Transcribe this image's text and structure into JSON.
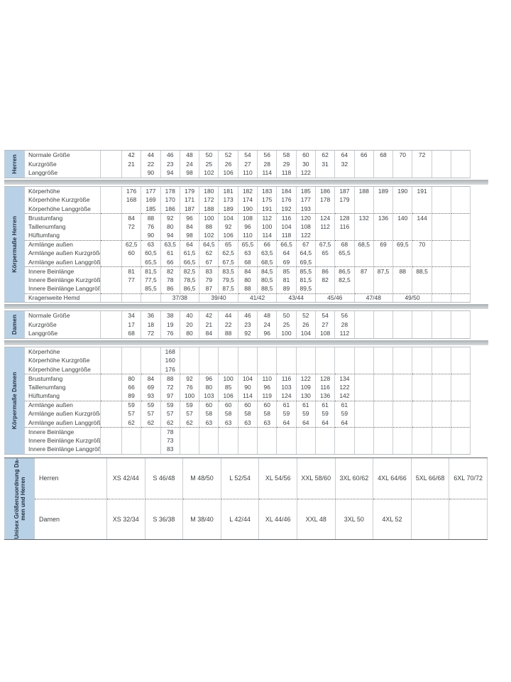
{
  "colors": {
    "strip_background": "#b9d1e6",
    "strip_text": "#223344",
    "grid_line": "#c9cdd1",
    "group_divider": "#6f6f6f",
    "section_border": "#b7bbbe",
    "separator_band_top": "#aab0b4",
    "separator_band_bottom": "#d9dcde",
    "text": "#3d3f41"
  },
  "sections": [
    {
      "id": "herren-groessen",
      "strip": "Herren",
      "kind": "main",
      "rows": [
        {
          "label": "Normale Größe",
          "values": [
            "42",
            "44",
            "46",
            "48",
            "50",
            "52",
            "54",
            "56",
            "58",
            "60",
            "62",
            "64",
            "66",
            "68",
            "70",
            "72",
            "",
            ""
          ]
        },
        {
          "label": "Kurzgröße",
          "values": [
            "21",
            "22",
            "23",
            "24",
            "25",
            "26",
            "27",
            "28",
            "29",
            "30",
            "31",
            "32",
            "",
            "",
            "",
            "",
            "",
            ""
          ]
        },
        {
          "label": "Langgröße",
          "values": [
            "",
            "90",
            "94",
            "98",
            "102",
            "106",
            "110",
            "114",
            "118",
            "122",
            "",
            "",
            "",
            "",
            "",
            "",
            "",
            ""
          ]
        }
      ]
    },
    {
      "id": "koerpermasse-herren",
      "strip": "Körpermaße Herren",
      "kind": "main",
      "rows": [
        {
          "label": "Körperhöhe",
          "values": [
            "176",
            "177",
            "178",
            "179",
            "180",
            "181",
            "182",
            "183",
            "184",
            "185",
            "186",
            "187",
            "188",
            "189",
            "190",
            "191",
            "",
            ""
          ]
        },
        {
          "label": "Körperhöhe Kurzgröße",
          "values": [
            "168",
            "169",
            "170",
            "171",
            "172",
            "173",
            "174",
            "175",
            "176",
            "177",
            "178",
            "179",
            "",
            "",
            "",
            "",
            "",
            ""
          ]
        },
        {
          "label": "Körperhöhe Langgröße",
          "values": [
            "",
            "185",
            "186",
            "187",
            "188",
            "189",
            "190",
            "191",
            "192",
            "193",
            "",
            "",
            "",
            "",
            "",
            "",
            "",
            ""
          ]
        },
        {
          "label": "Brustumfang",
          "group_start": true,
          "values": [
            "84",
            "88",
            "92",
            "96",
            "100",
            "104",
            "108",
            "112",
            "116",
            "120",
            "124",
            "128",
            "132",
            "136",
            "140",
            "144",
            "",
            ""
          ]
        },
        {
          "label": "Taillenumfang",
          "values": [
            "72",
            "76",
            "80",
            "84",
            "88",
            "92",
            "96",
            "100",
            "104",
            "108",
            "112",
            "116",
            "",
            "",
            "",
            "",
            "",
            ""
          ]
        },
        {
          "label": "Hüftumfang",
          "values": [
            "",
            "90",
            "94",
            "98",
            "102",
            "106",
            "110",
            "114",
            "118",
            "122",
            "",
            "",
            "",
            "",
            "",
            "",
            "",
            ""
          ]
        },
        {
          "label": "Armlänge außen",
          "group_start": true,
          "values": [
            "62,5",
            "63",
            "63,5",
            "64",
            "64,5",
            "65",
            "65,5",
            "66",
            "66,5",
            "67",
            "67,5",
            "68",
            "68,5",
            "69",
            "69,5",
            "70",
            "",
            ""
          ]
        },
        {
          "label": "Armlänge außen Kurzgröße",
          "values": [
            "60",
            "60,5",
            "61",
            "61,5",
            "62",
            "62,5",
            "63",
            "63,5",
            "64",
            "64,5",
            "65",
            "65,5",
            "",
            "",
            "",
            "",
            "",
            ""
          ]
        },
        {
          "label": "Armlänge außen Langgröße",
          "values": [
            "",
            "65,5",
            "66",
            "66,5",
            "67",
            "67,5",
            "68",
            "68,5",
            "69",
            "69,5",
            "",
            "",
            "",
            "",
            "",
            "",
            "",
            ""
          ]
        },
        {
          "label": "Innere Beinlänge",
          "group_start": true,
          "values": [
            "81",
            "81,5",
            "82",
            "82,5",
            "83",
            "83,5",
            "84",
            "84,5",
            "85",
            "85,5",
            "86",
            "86,5",
            "87",
            "87,5",
            "88",
            "88,5",
            "",
            ""
          ]
        },
        {
          "label": "Innere Beinlänge Kurzgröße",
          "values": [
            "77",
            "77,5",
            "78",
            "78,5",
            "79",
            "79,5",
            "80",
            "80,5",
            "81",
            "81,5",
            "82",
            "82,5",
            "",
            "",
            "",
            "",
            "",
            ""
          ]
        },
        {
          "label": "Innere Beinlänge Langgröße",
          "values": [
            "",
            "85,5",
            "86",
            "86,5",
            "87",
            "87,5",
            "88",
            "88,5",
            "89",
            "89,5",
            "",
            "",
            "",
            "",
            "",
            "",
            "",
            ""
          ]
        },
        {
          "label": "Kragenweite Hemd",
          "group_start": true,
          "type": "pair",
          "values": [
            "",
            "37/38",
            "39/40",
            "41/42",
            "43/44",
            "45/46",
            "47/48",
            "49/50",
            ""
          ]
        }
      ]
    },
    {
      "id": "damen-groessen",
      "strip": "Damen",
      "kind": "main",
      "rows": [
        {
          "label": "Normale Größe",
          "values": [
            "34",
            "36",
            "38",
            "40",
            "42",
            "44",
            "46",
            "48",
            "50",
            "52",
            "54",
            "56",
            "",
            "",
            "",
            "",
            "",
            ""
          ]
        },
        {
          "label": "Kurzgröße",
          "values": [
            "17",
            "18",
            "19",
            "20",
            "21",
            "22",
            "23",
            "24",
            "25",
            "26",
            "27",
            "28",
            "",
            "",
            "",
            "",
            "",
            ""
          ]
        },
        {
          "label": "Langgröße",
          "values": [
            "68",
            "72",
            "76",
            "80",
            "84",
            "88",
            "92",
            "96",
            "100",
            "104",
            "108",
            "112",
            "",
            "",
            "",
            "",
            "",
            ""
          ]
        }
      ]
    },
    {
      "id": "koerpermasse-damen",
      "strip": "Körpermaße Damen",
      "kind": "main",
      "rows": [
        {
          "label": "Körperhöhe",
          "values": [
            "",
            "",
            "168",
            "",
            "",
            "",
            "",
            "",
            "",
            "",
            "",
            "",
            "",
            "",
            "",
            "",
            "",
            ""
          ]
        },
        {
          "label": "Körperhöhe Kurzgröße",
          "values": [
            "",
            "",
            "160",
            "",
            "",
            "",
            "",
            "",
            "",
            "",
            "",
            "",
            "",
            "",
            "",
            "",
            "",
            ""
          ]
        },
        {
          "label": "Körperhöhe Langgröße",
          "values": [
            "",
            "",
            "176",
            "",
            "",
            "",
            "",
            "",
            "",
            "",
            "",
            "",
            "",
            "",
            "",
            "",
            "",
            ""
          ]
        },
        {
          "label": "Brustumfang",
          "group_start": true,
          "values": [
            "80",
            "84",
            "88",
            "92",
            "96",
            "100",
            "104",
            "110",
            "116",
            "122",
            "128",
            "134",
            "",
            "",
            "",
            "",
            "",
            ""
          ]
        },
        {
          "label": "Taillenumfang",
          "values": [
            "66",
            "69",
            "72",
            "76",
            "80",
            "85",
            "90",
            "96",
            "103",
            "109",
            "116",
            "122",
            "",
            "",
            "",
            "",
            "",
            ""
          ]
        },
        {
          "label": "Hüftumfang",
          "values": [
            "89",
            "93",
            "97",
            "100",
            "103",
            "106",
            "114",
            "119",
            "124",
            "130",
            "136",
            "142",
            "",
            "",
            "",
            "",
            "",
            ""
          ]
        },
        {
          "label": "Armlänge außen",
          "group_start": true,
          "values": [
            "59",
            "59",
            "59",
            "59",
            "60",
            "60",
            "60",
            "60",
            "61",
            "61",
            "61",
            "61",
            "",
            "",
            "",
            "",
            "",
            ""
          ]
        },
        {
          "label": "Armlänge außen Kurzgröße",
          "values": [
            "57",
            "57",
            "57",
            "57",
            "58",
            "58",
            "58",
            "58",
            "59",
            "59",
            "59",
            "59",
            "",
            "",
            "",
            "",
            "",
            ""
          ]
        },
        {
          "label": "Armlänge außen Langgröße",
          "values": [
            "62",
            "62",
            "62",
            "62",
            "63",
            "63",
            "63",
            "63",
            "64",
            "64",
            "64",
            "64",
            "",
            "",
            "",
            "",
            "",
            ""
          ]
        },
        {
          "label": "Innere Beinlänge",
          "group_start": true,
          "values": [
            "",
            "",
            "78",
            "",
            "",
            "",
            "",
            "",
            "",
            "",
            "",
            "",
            "",
            "",
            "",
            "",
            "",
            ""
          ]
        },
        {
          "label": "Innere Beinlänge Kurzgröße",
          "values": [
            "",
            "",
            "73",
            "",
            "",
            "",
            "",
            "",
            "",
            "",
            "",
            "",
            "",
            "",
            "",
            "",
            "",
            ""
          ]
        },
        {
          "label": "Innere Beinlänge Langgröße",
          "values": [
            "",
            "",
            "83",
            "",
            "",
            "",
            "",
            "",
            "",
            "",
            "",
            "",
            "",
            "",
            "",
            "",
            "",
            ""
          ]
        }
      ]
    },
    {
      "id": "unisex-groessenzuordnung",
      "strip": "Unisex Größenzuordnung Da-\nmen und Herren",
      "kind": "unisex",
      "rows": [
        {
          "label": "Herren",
          "values": [
            "XS 42/44",
            "S 46/48",
            "M 48/50",
            "L 52/54",
            "XL 54/56",
            "XXL 58/60",
            "3XL 60/62",
            "4XL 64/66",
            "5XL 66/68",
            "6XL 70/72"
          ]
        },
        {
          "label": "Damen",
          "group_start": true,
          "values": [
            "XS 32/34",
            "S 36/38",
            "M 38/40",
            "L 42/44",
            "XL 44/46",
            "XXL 48",
            "3XL 50",
            "4XL 52",
            "",
            ""
          ]
        }
      ]
    }
  ]
}
